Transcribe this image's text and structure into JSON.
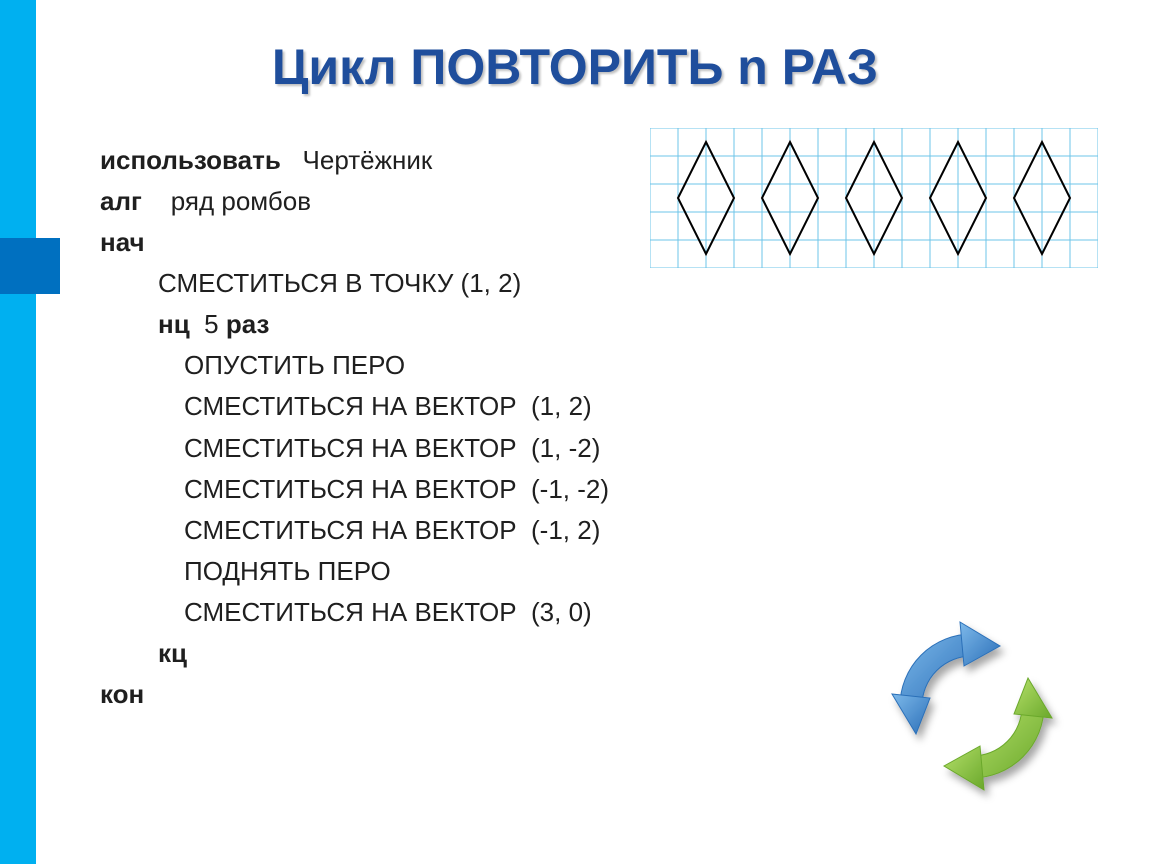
{
  "title": "Цикл ПОВТОРИТЬ n РАЗ",
  "code": {
    "use_kw": "использовать",
    "use_val": "Чертёжник",
    "alg_kw": "алг",
    "alg_val": "ряд ромбов",
    "begin_kw": "нач",
    "line_move_point": "СМЕСТИТЬСЯ В ТОЧКУ (1, 2)",
    "loop_kw": "нц",
    "loop_count": "5",
    "loop_times_kw": "раз",
    "pen_down": "ОПУСТИТЬ ПЕРО",
    "vec1": "СМЕСТИТЬСЯ НА ВЕКТОР  (1, 2)",
    "vec2": "СМЕСТИТЬСЯ НА ВЕКТОР  (1, -2)",
    "vec3": "СМЕСТИТЬСЯ НА ВЕКТОР  (-1, -2)",
    "vec4": "СМЕСТИТЬСЯ НА ВЕКТОР  (-1, 2)",
    "pen_up": "ПОДНЯТЬ ПЕРО",
    "vec5": "СМЕСТИТЬСЯ НА ВЕКТОР  (3, 0)",
    "end_loop_kw": "кц",
    "end_kw": "кон"
  },
  "diagram": {
    "type": "grid-with-shapes",
    "grid_color": "#6ec4e8",
    "line_color": "#000000",
    "background_color": "#ffffff",
    "cell_size": 28,
    "grid_cols": 16,
    "grid_rows": 5,
    "rhombus_count": 5,
    "rhombus_spacing_cells": 3,
    "start_x_cells": 1,
    "rhombus_half_width_cells": 1,
    "rhombus_half_height_cells": 2,
    "line_width": 2
  },
  "icon": {
    "name": "cycle-arrows",
    "arrow1_color": "#4a8fd8",
    "arrow2_color": "#8cc63f"
  },
  "colors": {
    "left_bar": "#00b0f0",
    "left_accent": "#0070c0",
    "title_color": "#1f4e9c",
    "text_color": "#1f1f1f"
  }
}
